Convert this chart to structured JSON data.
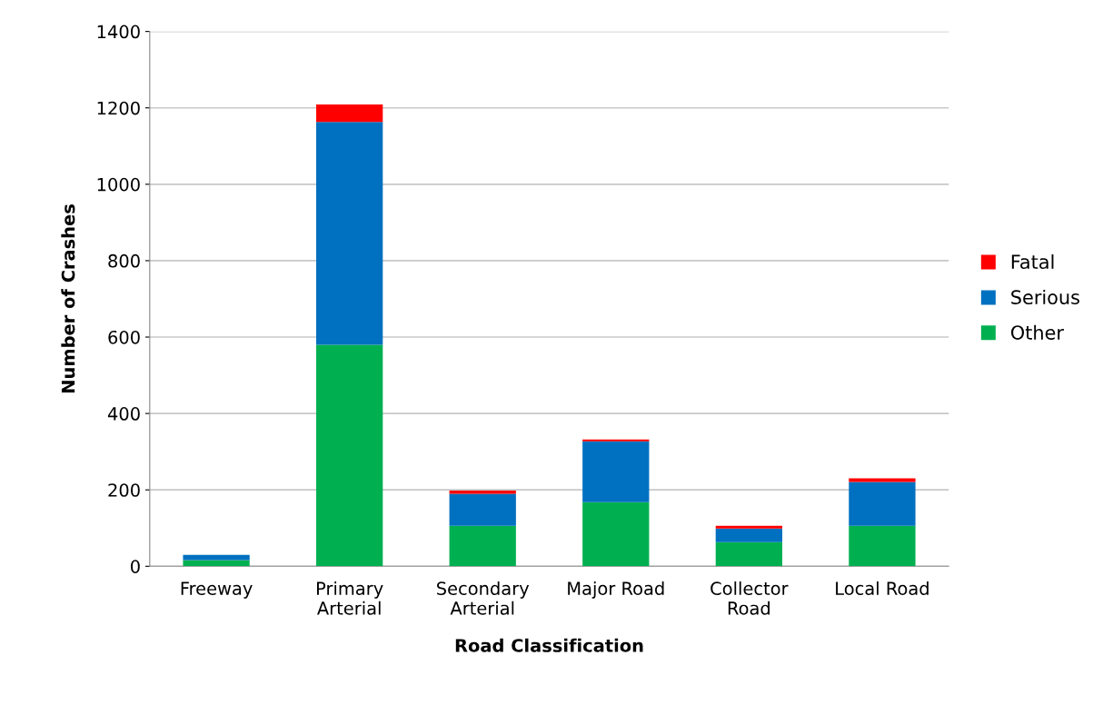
{
  "chart_data": {
    "type": "bar",
    "stacked": true,
    "xlabel": "Road Classification",
    "ylabel": "Number of Crashes",
    "categories": [
      "Freeway",
      "Primary\nArterial",
      "Secondary\nArterial",
      "Major Road",
      "Collector\nRoad",
      "Local Road"
    ],
    "series": [
      {
        "name": "Other",
        "color": "#00b050",
        "values": [
          16,
          580,
          106,
          168,
          63,
          106
        ]
      },
      {
        "name": "Serious",
        "color": "#0070c0",
        "values": [
          14,
          583,
          84,
          159,
          36,
          115
        ]
      },
      {
        "name": "Fatal",
        "color": "#ff0000",
        "values": [
          0,
          46,
          8,
          5,
          7,
          9
        ]
      }
    ],
    "ylim": [
      0,
      1400
    ],
    "yticks": [
      0,
      200,
      400,
      600,
      800,
      1000,
      1200,
      1400
    ],
    "grid": "y",
    "legend": "right"
  }
}
